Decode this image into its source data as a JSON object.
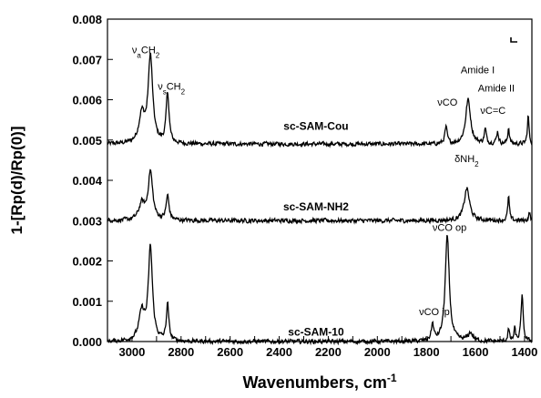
{
  "chart_data": {
    "type": "line",
    "xlabel": "Wavenumbers, cm",
    "xlabel_superscript": "-1",
    "ylabel": "1-[Rp(d)/Rp(0)]",
    "xlim": [
      3100,
      1370
    ],
    "ylim": [
      0.0,
      0.008
    ],
    "x_reversed": true,
    "grid": false,
    "x_ticks": [
      "3000",
      "2900",
      "2800",
      "2700",
      "2600",
      "2500",
      "2400",
      "2300",
      "2200",
      "2100",
      "2000",
      "1900",
      "1800",
      "1700",
      "1600",
      "1500",
      "1400"
    ],
    "y_ticks": [
      "0.000",
      "0.001",
      "0.002",
      "0.003",
      "0.004",
      "0.005",
      "0.006",
      "0.007",
      "0.008"
    ],
    "series": [
      {
        "name": "sc-SAM-Cou",
        "baseline": 0.0049,
        "peaks": [
          {
            "x": 2960,
            "h": 0.0007,
            "w": 14
          },
          {
            "x": 2925,
            "h": 0.00215,
            "w": 11
          },
          {
            "x": 2855,
            "h": 0.00125,
            "w": 7
          },
          {
            "x": 1720,
            "h": 0.0004,
            "w": 6
          },
          {
            "x": 1630,
            "h": 0.0011,
            "w": 12
          },
          {
            "x": 1560,
            "h": 0.00035,
            "w": 5
          },
          {
            "x": 1510,
            "h": 0.0003,
            "w": 5
          },
          {
            "x": 1465,
            "h": 0.0004,
            "w": 4
          },
          {
            "x": 1385,
            "h": 0.0007,
            "w": 4
          }
        ]
      },
      {
        "name": "sc-SAM-NH2",
        "baseline": 0.003,
        "peaks": [
          {
            "x": 2960,
            "h": 0.0004,
            "w": 14
          },
          {
            "x": 2925,
            "h": 0.0012,
            "w": 11
          },
          {
            "x": 2855,
            "h": 0.0006,
            "w": 7
          },
          {
            "x": 1635,
            "h": 0.0008,
            "w": 13
          },
          {
            "x": 1465,
            "h": 0.0006,
            "w": 4
          },
          {
            "x": 1380,
            "h": 0.0002,
            "w": 4
          }
        ]
      },
      {
        "name": "sc-SAM-10",
        "baseline": 0.0,
        "peaks": [
          {
            "x": 2960,
            "h": 0.0007,
            "w": 14
          },
          {
            "x": 2925,
            "h": 0.0023,
            "w": 10
          },
          {
            "x": 2855,
            "h": 0.0009,
            "w": 6
          },
          {
            "x": 1775,
            "h": 0.0004,
            "w": 6
          },
          {
            "x": 1715,
            "h": 0.0026,
            "w": 10
          },
          {
            "x": 1620,
            "h": 0.0002,
            "w": 12
          },
          {
            "x": 1465,
            "h": 0.0003,
            "w": 4
          },
          {
            "x": 1440,
            "h": 0.0003,
            "w": 4
          },
          {
            "x": 1410,
            "h": 0.00115,
            "w": 5
          }
        ]
      }
    ],
    "series_labels": [
      {
        "text": "sc-SAM-Cou",
        "x": 2250,
        "y": 0.00525
      },
      {
        "text": "sc-SAM-NH2",
        "x": 2250,
        "y": 0.00325
      },
      {
        "text": "sc-SAM-10",
        "x": 2250,
        "y": 0.00015
      }
    ],
    "annotations": [
      {
        "main": "ν",
        "sub": "a",
        "rest": "CH",
        "sub2": "2",
        "x": 3000,
        "y": 0.00715
      },
      {
        "main": "ν",
        "sub": "s",
        "rest": "CH",
        "sub2": "2",
        "x": 2895,
        "y": 0.00625
      },
      {
        "main": "νCO",
        "sub": "",
        "rest": "",
        "sub2": "",
        "x": 1755,
        "y": 0.00585
      },
      {
        "main": "Amide I",
        "sub": "",
        "rest": "",
        "sub2": "",
        "x": 1660,
        "y": 0.00665
      },
      {
        "main": "Amide II",
        "sub": "",
        "rest": "",
        "sub2": "",
        "x": 1590,
        "y": 0.0062
      },
      {
        "main": "νC=C",
        "sub": "",
        "rest": "",
        "sub2": "",
        "x": 1580,
        "y": 0.00565
      },
      {
        "main": "δNH",
        "sub": "",
        "rest": "",
        "sub2": "2",
        "x": 1685,
        "y": 0.00445
      },
      {
        "main": "νCO op",
        "sub": "",
        "rest": "",
        "sub2": "",
        "x": 1775,
        "y": 0.00275
      },
      {
        "main": "νCO ip",
        "sub": "",
        "rest": "",
        "sub2": "",
        "x": 1830,
        "y": 0.00065
      }
    ]
  }
}
